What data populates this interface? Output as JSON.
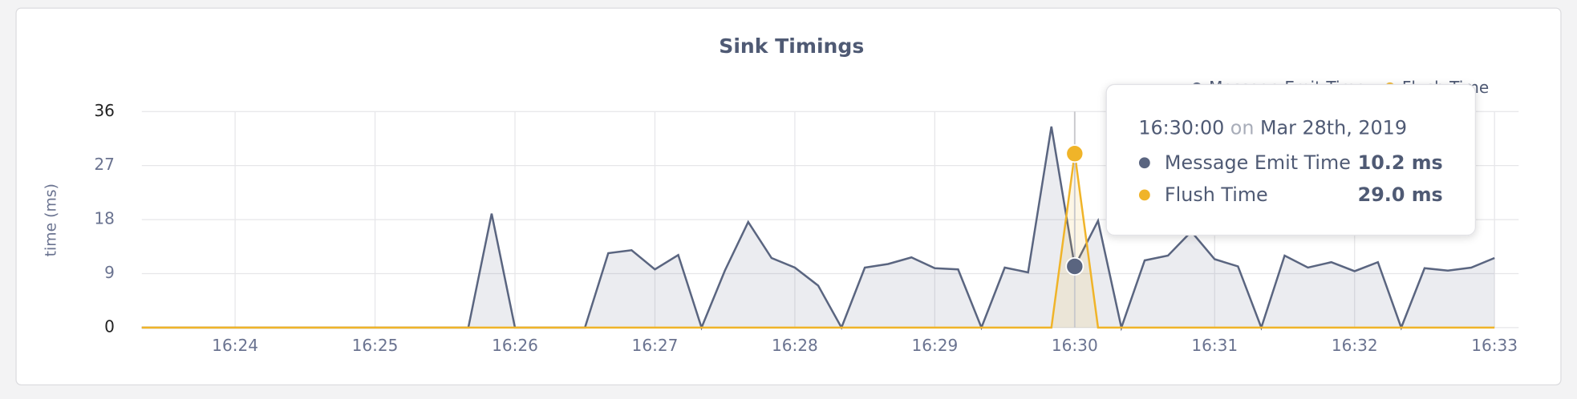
{
  "chart_data": {
    "type": "line",
    "title": "Sink Timings",
    "y_label": "time (ms)",
    "x": [
      "16:23:20",
      "16:23:30",
      "16:23:40",
      "16:23:50",
      "16:24:00",
      "16:24:10",
      "16:24:20",
      "16:24:30",
      "16:24:40",
      "16:24:50",
      "16:25:00",
      "16:25:10",
      "16:25:20",
      "16:25:30",
      "16:25:40",
      "16:25:50",
      "16:26:00",
      "16:26:10",
      "16:26:20",
      "16:26:30",
      "16:26:40",
      "16:26:50",
      "16:27:00",
      "16:27:10",
      "16:27:20",
      "16:27:30",
      "16:27:40",
      "16:27:50",
      "16:28:00",
      "16:28:10",
      "16:28:20",
      "16:28:30",
      "16:28:40",
      "16:28:50",
      "16:29:00",
      "16:29:10",
      "16:29:20",
      "16:29:30",
      "16:29:40",
      "16:29:50",
      "16:30:00",
      "16:30:10",
      "16:30:20",
      "16:30:30",
      "16:30:40",
      "16:30:50",
      "16:31:00",
      "16:31:10",
      "16:31:20",
      "16:31:30",
      "16:31:40",
      "16:31:50",
      "16:32:00",
      "16:32:10",
      "16:32:20",
      "16:32:30",
      "16:32:40",
      "16:32:50",
      "16:33:00"
    ],
    "series": [
      {
        "name": "Message Emit Time",
        "color": "#5a6580",
        "values": [
          0,
          0,
          0,
          0,
          0,
          0,
          0,
          0,
          0,
          0,
          0,
          0,
          0,
          0,
          0,
          19,
          0,
          0,
          0,
          0,
          12.4,
          12.9,
          9.7,
          12.1,
          0,
          9.5,
          17.6,
          11.6,
          10,
          7,
          0,
          10,
          10.6,
          11.7,
          9.9,
          9.7,
          0,
          10,
          9.2,
          33.5,
          10.2,
          17.8,
          0,
          11.2,
          12,
          16,
          11.4,
          10.2,
          0,
          12,
          10,
          10.9,
          9.4,
          10.9,
          0,
          9.9,
          9.5,
          10,
          11.6
        ]
      },
      {
        "name": "Flush Time",
        "color": "#f0b429",
        "values": [
          0,
          0,
          0,
          0,
          0,
          0,
          0,
          0,
          0,
          0,
          0,
          0,
          0,
          0,
          0,
          0,
          0,
          0,
          0,
          0,
          0,
          0,
          0,
          0,
          0,
          0,
          0,
          0,
          0,
          0,
          0,
          0,
          0,
          0,
          0,
          0,
          0,
          0,
          0,
          0,
          29,
          0,
          0,
          0,
          0,
          0,
          0,
          0,
          0,
          0,
          0,
          0,
          0,
          0,
          0,
          0,
          0,
          0,
          0
        ]
      }
    ],
    "xlim": [
      "16:23:20",
      "16:33:00"
    ],
    "xticks": [
      "16:24",
      "16:25",
      "16:26",
      "16:27",
      "16:28",
      "16:29",
      "16:30",
      "16:31",
      "16:32",
      "16:33"
    ],
    "ylim": [
      0,
      36
    ],
    "yticks": [
      0,
      9,
      18,
      27,
      36
    ],
    "grid": true,
    "tooltip": {
      "time": "16:30:00",
      "connector": "on",
      "date": "Mar 28th, 2019",
      "labels": [
        "10.2 ms",
        "29.0 ms"
      ]
    }
  }
}
